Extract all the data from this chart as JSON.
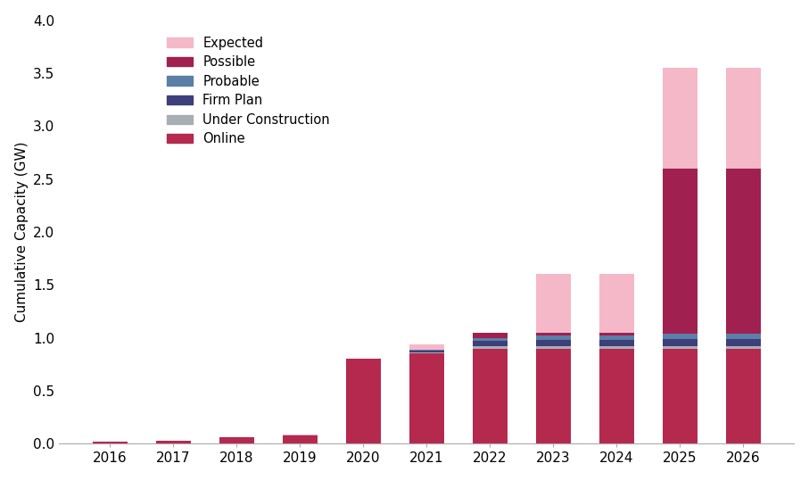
{
  "years": [
    "2016",
    "2017",
    "2018",
    "2019",
    "2020",
    "2021",
    "2022",
    "2023",
    "2024",
    "2025",
    "2026"
  ],
  "online": [
    0.02,
    0.03,
    0.06,
    0.08,
    0.8,
    0.85,
    0.9,
    0.9,
    0.9,
    0.9,
    0.9
  ],
  "under_construction": [
    0.0,
    0.0,
    0.0,
    0.0,
    0.0,
    0.01,
    0.02,
    0.02,
    0.02,
    0.02,
    0.02
  ],
  "firm_plan": [
    0.0,
    0.0,
    0.0,
    0.0,
    0.0,
    0.02,
    0.05,
    0.06,
    0.06,
    0.07,
    0.07
  ],
  "probable": [
    0.0,
    0.0,
    0.0,
    0.0,
    0.0,
    0.01,
    0.03,
    0.04,
    0.04,
    0.05,
    0.05
  ],
  "possible": [
    0.0,
    0.0,
    0.0,
    0.0,
    0.0,
    0.0,
    0.05,
    0.03,
    0.03,
    1.56,
    1.56
  ],
  "expected": [
    0.0,
    0.0,
    0.0,
    0.01,
    0.0,
    0.05,
    0.0,
    0.55,
    0.55,
    0.95,
    0.95
  ],
  "color_online": "#b5294e",
  "color_under_const": "#a8aeb4",
  "color_firm_plan": "#3d3f7a",
  "color_probable": "#5b7fa6",
  "color_possible": "#a02050",
  "color_expected": "#f5b8c8",
  "ylabel": "Cumulative Capacity (GW)",
  "ylim": [
    0,
    4.0
  ],
  "yticks": [
    0.0,
    0.5,
    1.0,
    1.5,
    2.0,
    2.5,
    3.0,
    3.5,
    4.0
  ],
  "background_color": "#ffffff",
  "bar_width": 0.55
}
